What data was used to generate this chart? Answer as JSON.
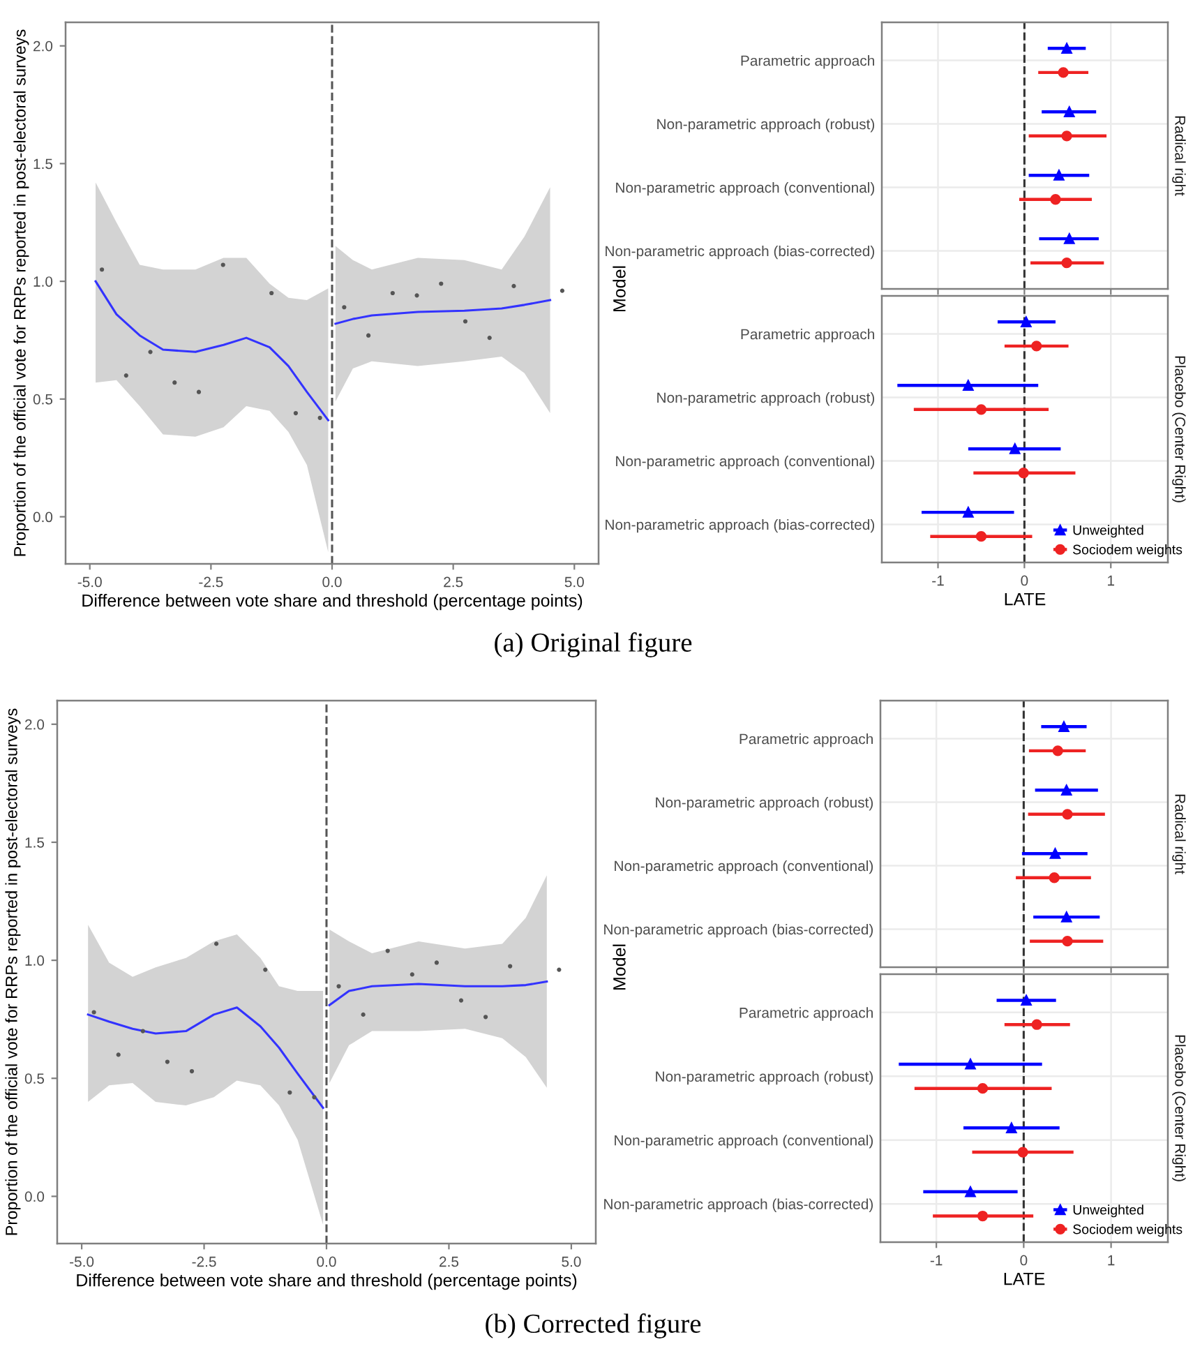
{
  "chart_data": [
    {
      "type": "scatter",
      "xlabel": "Difference between vote share and threshold (percentage points)",
      "ylabel": "Proportion of the official vote for RRPs reported in post-electoral surveys",
      "xlim": [
        -5.5,
        5.5
      ],
      "ylim": [
        -0.2,
        2.1
      ],
      "xticks": [
        {
          "value": -5,
          "label": "-5.0"
        },
        {
          "value": -2.5,
          "label": "-2.5"
        },
        {
          "value": 0,
          "label": "0.0"
        },
        {
          "value": 2.5,
          "label": "2.5"
        },
        {
          "value": 5,
          "label": "5.0"
        }
      ],
      "yticks": [
        {
          "value": 0,
          "label": "0.0"
        },
        {
          "value": 0.5,
          "label": "0.5"
        },
        {
          "value": 1,
          "label": "1.0"
        },
        {
          "value": 1.5,
          "label": "1.5"
        },
        {
          "value": 2,
          "label": "2.0"
        }
      ],
      "ref_lines": [
        {
          "axis": "x",
          "value": 0,
          "line_style": "dashed",
          "color": "#555555"
        }
      ],
      "annotations": [
        "(a) Original figure"
      ],
      "series": [
        {
          "type": "scatter",
          "color": "#555555",
          "marker": "circle",
          "x": [
            -4.75,
            -4.25,
            -3.75,
            -3.25,
            -2.75,
            -2.25,
            -1.25,
            -0.75,
            -0.25,
            0.25,
            0.75,
            1.25,
            1.75,
            2.25,
            2.75,
            3.25,
            3.75,
            4.75
          ],
          "values": [
            1.05,
            0.6,
            0.7,
            0.57,
            0.53,
            1.07,
            0.95,
            0.44,
            0.42,
            0.89,
            0.77,
            0.95,
            0.94,
            0.99,
            0.83,
            0.76,
            0.98,
            0.96
          ]
        },
        {
          "type": "line",
          "color": "#3333ff",
          "x": [
            -4.88,
            -4.45,
            -3.97,
            -3.49,
            -2.82,
            -2.24,
            -1.77,
            -1.29,
            -0.9,
            -0.52,
            -0.08
          ],
          "values": [
            1.0,
            0.86,
            0.77,
            0.71,
            0.7,
            0.73,
            0.76,
            0.72,
            0.64,
            0.53,
            0.41
          ],
          "lower": [
            0.57,
            0.58,
            0.47,
            0.35,
            0.34,
            0.38,
            0.47,
            0.45,
            0.36,
            0.22,
            -0.15
          ],
          "upper": [
            1.42,
            1.25,
            1.07,
            1.05,
            1.05,
            1.1,
            1.1,
            0.99,
            0.93,
            0.92,
            0.97
          ]
        },
        {
          "type": "line",
          "color": "#3333ff",
          "x": [
            0.07,
            0.43,
            0.82,
            1.77,
            2.73,
            3.5,
            3.97,
            4.5
          ],
          "values": [
            0.82,
            0.84,
            0.855,
            0.87,
            0.875,
            0.885,
            0.9,
            0.92
          ],
          "lower": [
            0.49,
            0.63,
            0.66,
            0.64,
            0.66,
            0.68,
            0.61,
            0.44
          ],
          "upper": [
            1.15,
            1.09,
            1.05,
            1.1,
            1.09,
            1.05,
            1.19,
            1.4
          ]
        }
      ]
    },
    {
      "type": "scatter",
      "orientation": "horizontal",
      "title": "Radical right",
      "ylabel": "Model",
      "xlim": [
        -1.65,
        1.66
      ],
      "xticks": [
        -1,
        0,
        1
      ],
      "grid": true,
      "tick_labels": "y",
      "ref_lines": [
        {
          "axis": "x",
          "value": 0,
          "line_style": "dashed",
          "color": "#333333"
        }
      ],
      "categories": [
        "Parametric approach",
        "Non-parametric approach (robust)",
        "Non-parametric approach (conventional)",
        "Non-parametric approach (bias-corrected)"
      ],
      "series": [
        {
          "color": "#0000ff",
          "marker": "triangle",
          "values": [
            0.49,
            0.52,
            0.4,
            0.52
          ],
          "errors": [
            [
              0.27,
              0.71
            ],
            [
              0.2,
              0.83
            ],
            [
              0.05,
              0.75
            ],
            [
              0.17,
              0.86
            ]
          ]
        },
        {
          "color": "#ee2222",
          "marker": "circle",
          "values": [
            0.45,
            0.49,
            0.36,
            0.49
          ],
          "errors": [
            [
              0.16,
              0.74
            ],
            [
              0.05,
              0.95
            ],
            [
              -0.06,
              0.78
            ],
            [
              0.07,
              0.92
            ]
          ]
        }
      ]
    },
    {
      "type": "scatter",
      "orientation": "horizontal",
      "title": "Placebo (Center Right)",
      "xlabel": "LATE",
      "xlim": [
        -1.65,
        1.66
      ],
      "xticks": [
        -1,
        0,
        1
      ],
      "grid": true,
      "legend": "bottom right",
      "ref_lines": [
        {
          "axis": "x",
          "value": 0,
          "line_style": "dashed",
          "color": "#333333"
        }
      ],
      "categories": [
        "Parametric approach",
        "Non-parametric approach (robust)",
        "Non-parametric approach (conventional)",
        "Non-parametric approach (bias-corrected)"
      ],
      "series": [
        {
          "name": "Unweighted",
          "color": "#0000ff",
          "marker": "triangle",
          "values": [
            0.02,
            -0.65,
            -0.11,
            -0.65
          ],
          "errors": [
            [
              -0.31,
              0.36
            ],
            [
              -1.47,
              0.16
            ],
            [
              -0.65,
              0.42
            ],
            [
              -1.19,
              -0.12
            ]
          ]
        },
        {
          "name": "Sociodem weights",
          "color": "#ee2222",
          "marker": "circle",
          "values": [
            0.14,
            -0.5,
            -0.01,
            -0.5
          ],
          "errors": [
            [
              -0.23,
              0.51
            ],
            [
              -1.28,
              0.28
            ],
            [
              -0.59,
              0.59
            ],
            [
              -1.09,
              0.09
            ]
          ]
        }
      ]
    },
    {
      "type": "scatter",
      "xlabel": "Difference between vote share and threshold (percentage points)",
      "ylabel": "Proportion of the official vote for RRPs reported in post-electoral surveys",
      "xlim": [
        -5.5,
        5.5
      ],
      "ylim": [
        -0.2,
        2.1
      ],
      "xticks": [
        {
          "value": -5,
          "label": "-5.0"
        },
        {
          "value": -2.5,
          "label": "-2.5"
        },
        {
          "value": 0,
          "label": "0.0"
        },
        {
          "value": 2.5,
          "label": "2.5"
        },
        {
          "value": 5,
          "label": "5.0"
        }
      ],
      "yticks": [
        {
          "value": 0,
          "label": "0.0"
        },
        {
          "value": 0.5,
          "label": "0.5"
        },
        {
          "value": 1,
          "label": "1.0"
        },
        {
          "value": 1.5,
          "label": "1.5"
        },
        {
          "value": 2,
          "label": "2.0"
        }
      ],
      "ref_lines": [
        {
          "axis": "x",
          "value": 0,
          "line_style": "dashed",
          "color": "#555555"
        }
      ],
      "annotations": [
        "(b) Corrected figure"
      ],
      "series": [
        {
          "type": "scatter",
          "color": "#555555",
          "marker": "circle",
          "x": [
            -4.75,
            -4.25,
            -3.75,
            -3.25,
            -2.75,
            -2.25,
            -1.25,
            -0.75,
            -0.25,
            0.25,
            0.75,
            1.25,
            1.75,
            2.25,
            2.75,
            3.25,
            3.75,
            4.75
          ],
          "values": [
            0.78,
            0.6,
            0.7,
            0.57,
            0.53,
            1.07,
            0.96,
            0.44,
            0.42,
            0.89,
            0.77,
            1.04,
            0.94,
            0.99,
            0.83,
            0.76,
            0.975,
            0.96
          ]
        },
        {
          "type": "line",
          "color": "#3333ff",
          "x": [
            -4.87,
            -4.44,
            -3.96,
            -3.49,
            -2.87,
            -2.3,
            -1.83,
            -1.35,
            -0.97,
            -0.59,
            -0.07
          ],
          "values": [
            0.77,
            0.74,
            0.71,
            0.69,
            0.7,
            0.77,
            0.8,
            0.72,
            0.63,
            0.52,
            0.375
          ],
          "lower": [
            0.4,
            0.47,
            0.48,
            0.4,
            0.385,
            0.42,
            0.49,
            0.47,
            0.385,
            0.24,
            -0.12
          ],
          "upper": [
            1.15,
            0.99,
            0.93,
            0.97,
            1.01,
            1.08,
            1.11,
            1.01,
            0.89,
            0.87,
            0.87
          ]
        },
        {
          "type": "line",
          "color": "#3333ff",
          "x": [
            0.06,
            0.46,
            0.93,
            1.88,
            2.83,
            3.59,
            4.07,
            4.5
          ],
          "values": [
            0.81,
            0.87,
            0.89,
            0.9,
            0.89,
            0.89,
            0.895,
            0.91
          ],
          "lower": [
            0.48,
            0.64,
            0.7,
            0.7,
            0.71,
            0.67,
            0.59,
            0.46
          ],
          "upper": [
            1.13,
            1.08,
            1.03,
            1.08,
            1.05,
            1.07,
            1.18,
            1.36
          ]
        }
      ]
    },
    {
      "type": "scatter",
      "orientation": "horizontal",
      "title": "Radical right",
      "ylabel": "Model",
      "xlim": [
        -1.64,
        1.65
      ],
      "xticks": [
        -1,
        0,
        1
      ],
      "grid": true,
      "tick_labels": "y",
      "ref_lines": [
        {
          "axis": "x",
          "value": 0,
          "line_style": "dashed",
          "color": "#333333"
        }
      ],
      "categories": [
        "Parametric approach",
        "Non-parametric approach (robust)",
        "Non-parametric approach (conventional)",
        "Non-parametric approach (bias-corrected)"
      ],
      "series": [
        {
          "color": "#0000ff",
          "marker": "triangle",
          "values": [
            0.46,
            0.49,
            0.36,
            0.49
          ],
          "errors": [
            [
              0.2,
              0.72
            ],
            [
              0.13,
              0.85
            ],
            [
              -0.02,
              0.73
            ],
            [
              0.11,
              0.87
            ]
          ]
        },
        {
          "color": "#ee2222",
          "marker": "circle",
          "values": [
            0.39,
            0.5,
            0.35,
            0.5
          ],
          "errors": [
            [
              0.06,
              0.71
            ],
            [
              0.05,
              0.93
            ],
            [
              -0.09,
              0.77
            ],
            [
              0.07,
              0.91
            ]
          ]
        }
      ]
    },
    {
      "type": "scatter",
      "orientation": "horizontal",
      "title": "Placebo (Center Right)",
      "xlabel": "LATE",
      "xlim": [
        -1.64,
        1.65
      ],
      "xticks": [
        -1,
        0,
        1
      ],
      "grid": true,
      "legend": "bottom right",
      "ref_lines": [
        {
          "axis": "x",
          "value": 0,
          "line_style": "dashed",
          "color": "#333333"
        }
      ],
      "categories": [
        "Parametric approach",
        "Non-parametric approach (robust)",
        "Non-parametric approach (conventional)",
        "Non-parametric approach (bias-corrected)"
      ],
      "series": [
        {
          "name": "Unweighted",
          "color": "#0000ff",
          "marker": "triangle",
          "values": [
            0.03,
            -0.61,
            -0.14,
            -0.61
          ],
          "errors": [
            [
              -0.31,
              0.37
            ],
            [
              -1.43,
              0.21
            ],
            [
              -0.69,
              0.41
            ],
            [
              -1.15,
              -0.07
            ]
          ]
        },
        {
          "name": "Sociodem weights",
          "color": "#ee2222",
          "marker": "circle",
          "values": [
            0.15,
            -0.47,
            -0.01,
            -0.47
          ],
          "errors": [
            [
              -0.22,
              0.53
            ],
            [
              -1.25,
              0.32
            ],
            [
              -0.59,
              0.57
            ],
            [
              -1.04,
              0.11
            ]
          ]
        }
      ]
    }
  ]
}
